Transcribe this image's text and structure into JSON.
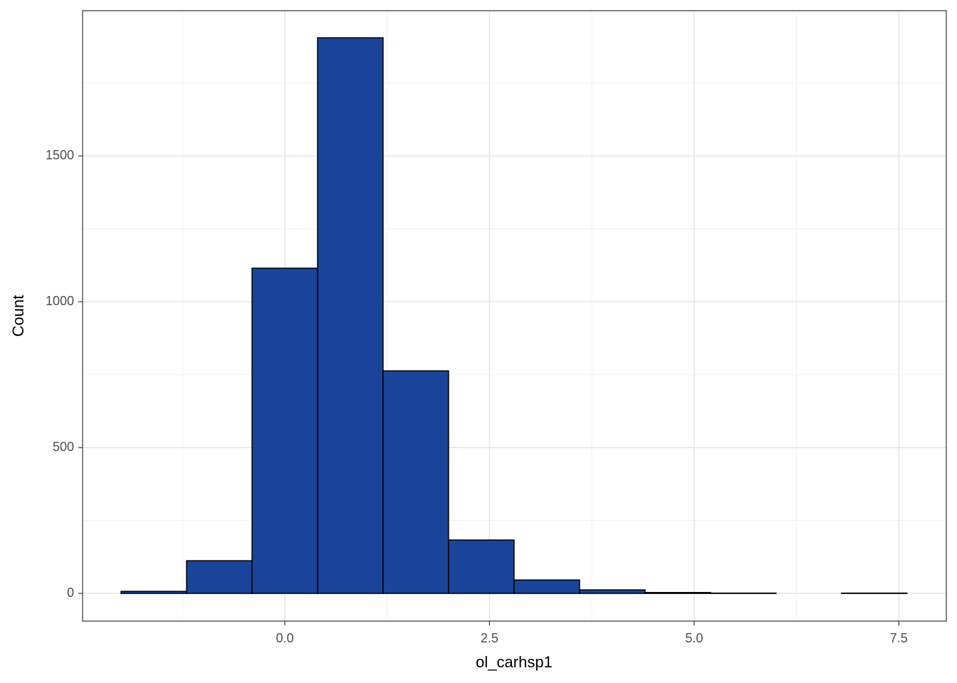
{
  "chart_data": {
    "type": "histogram",
    "x_label": "ol_carhsp1",
    "y_label": "Count",
    "bins": [
      -2.0,
      -1.2,
      -0.4,
      0.4,
      1.2,
      2.0,
      2.8,
      3.6,
      4.4,
      5.2,
      6.0,
      6.8,
      7.6
    ],
    "values": [
      7,
      112,
      1115,
      1905,
      763,
      183,
      46,
      12,
      3,
      1,
      0,
      1
    ],
    "color": "#1a4499",
    "edge_color": "#000000",
    "xlim": [
      -2.47,
      8.08
    ],
    "ylim": [
      -95,
      1998
    ],
    "xticks": [
      {
        "value": 0,
        "label": "0.0"
      },
      2.5,
      {
        "value": 5,
        "label": "5.0"
      },
      7.5
    ],
    "yticks": [
      0,
      500,
      1000,
      1500
    ],
    "grid": true
  }
}
